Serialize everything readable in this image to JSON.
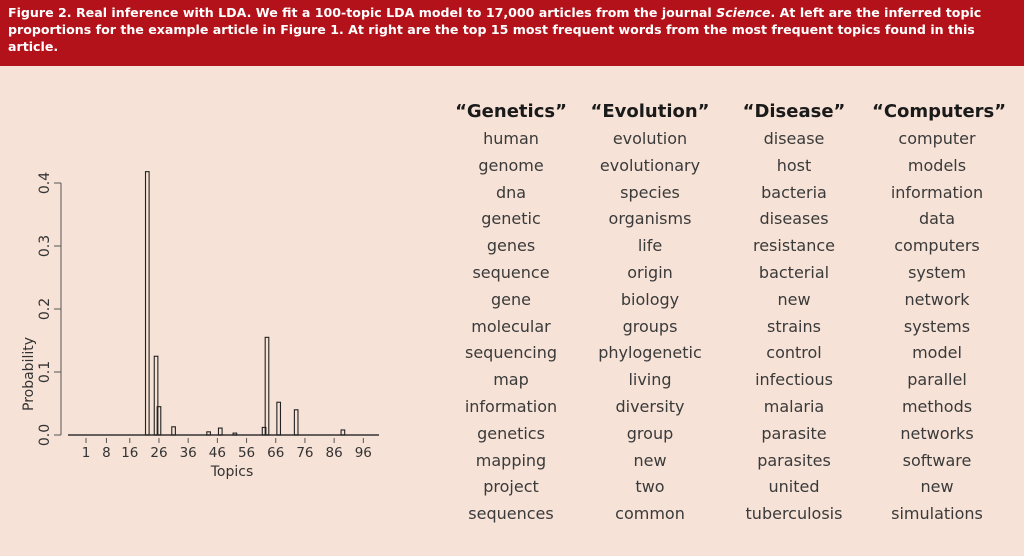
{
  "caption": {
    "prefix": "Figure 2. Real inference with LDA. We fit a 100-topic LDA model to 17,000 articles from the journal ",
    "journal": "Science",
    "suffix": ". At left are the inferred topic proportions for the example article in Figure 1. At right are the top 15 most frequent words from the most frequent topics found in this article."
  },
  "chart_data": {
    "type": "bar",
    "xlabel": "Topics",
    "ylabel": "Probability",
    "xlim": [
      1,
      100
    ],
    "ylim": [
      0,
      0.42
    ],
    "x_ticks": [
      1,
      8,
      16,
      26,
      36,
      46,
      56,
      66,
      76,
      86,
      96
    ],
    "x_tick_labels": [
      "1",
      "8",
      "16",
      "26",
      "36",
      "46",
      "56",
      "66",
      "76",
      "86",
      "96"
    ],
    "y_ticks": [
      0,
      0.1,
      0.2,
      0.3,
      0.4
    ],
    "y_tick_labels": [
      "0.0",
      "0.1",
      "0.2",
      "0.3",
      "0.4"
    ],
    "grid": false,
    "x": [
      22,
      25,
      26,
      31,
      43,
      47,
      52,
      62,
      63,
      67,
      73,
      89
    ],
    "values": [
      0.418,
      0.125,
      0.045,
      0.013,
      0.005,
      0.011,
      0.003,
      0.012,
      0.155,
      0.052,
      0.04,
      0.008
    ]
  },
  "topics": [
    {
      "title": "“Genetics”",
      "words": [
        "human",
        "genome",
        "dna",
        "genetic",
        "genes",
        "sequence",
        "gene",
        "molecular",
        "sequencing",
        "map",
        "information",
        "genetics",
        "mapping",
        "project",
        "sequences"
      ]
    },
    {
      "title": "“Evolution”",
      "words": [
        "evolution",
        "evolutionary",
        "species",
        "organisms",
        "life",
        "origin",
        "biology",
        "groups",
        "phylogenetic",
        "living",
        "diversity",
        "group",
        "new",
        "two",
        "common"
      ]
    },
    {
      "title": "“Disease”",
      "words": [
        "disease",
        "host",
        "bacteria",
        "diseases",
        "resistance",
        "bacterial",
        "new",
        "strains",
        "control",
        "infectious",
        "malaria",
        "parasite",
        "parasites",
        "united",
        "tuberculosis"
      ]
    },
    {
      "title": "“Computers”",
      "words": [
        "computer",
        "models",
        "information",
        "data",
        "computers",
        "system",
        "network",
        "systems",
        "model",
        "parallel",
        "methods",
        "networks",
        "software",
        "new",
        "simulations"
      ]
    }
  ]
}
